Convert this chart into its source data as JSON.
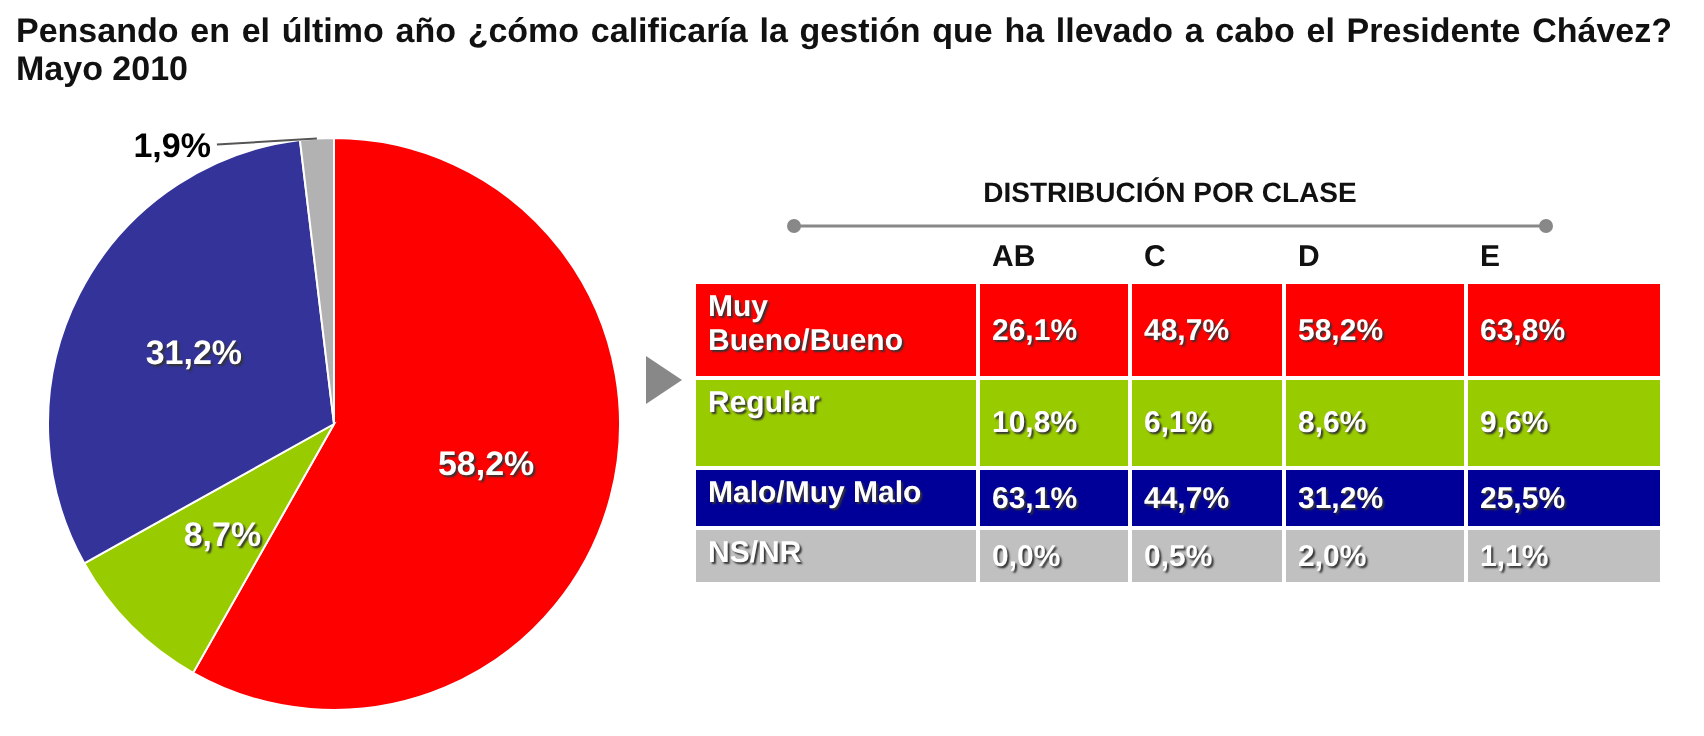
{
  "chart_data": [
    {
      "type": "pie",
      "title": "Pensando en el último año ¿cómo calificaría la gestión que ha llevado a cabo el Presidente Chávez? Mayo 2010",
      "categories": [
        null,
        null,
        null,
        null
      ],
      "values": [
        58.2,
        8.7,
        31.2,
        1.9
      ],
      "value_labels": [
        "58,2%",
        "8,7%",
        "31,2%",
        "1,9%"
      ],
      "colors": [
        "#ff0000",
        "#99cc00",
        "#333399",
        "#b2b2b2"
      ]
    },
    {
      "type": "other",
      "title": "DISTRIBUCIÓN POR CLASE",
      "categories": [
        "AB",
        "C",
        "D",
        "E"
      ],
      "y_categories": [
        "Muy Bueno/Bueno",
        "Regular",
        "Malo/Muy Malo",
        "NS/NR"
      ],
      "cell_labels": [
        [
          "26,1%",
          "48,7%",
          "58,2%",
          "63,8%"
        ],
        [
          "10,8%",
          "6,1%",
          "8,6%",
          "9,6%"
        ],
        [
          "63,1%",
          "44,7%",
          "31,2%",
          "25,5%"
        ],
        [
          "0,0%",
          "0,5%",
          "2,0%",
          "1,1%"
        ]
      ],
      "colors": [
        "#ff0000",
        "#99cc00",
        "#000099",
        "#c0c0c0"
      ]
    }
  ]
}
